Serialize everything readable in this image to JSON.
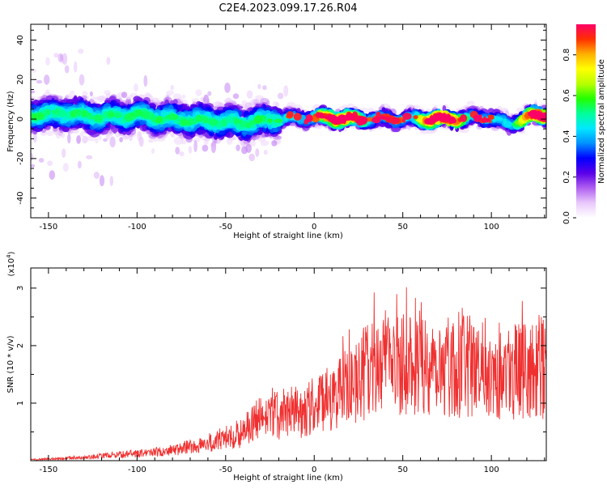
{
  "title": "C2E4.2023.099.17.26.R04",
  "chart_data": [
    {
      "type": "heatmap",
      "xlabel": "Height of straight line (km)",
      "ylabel": "Frequency (Hz)",
      "xlim": [
        -160,
        131
      ],
      "ylim": [
        -50,
        48
      ],
      "xticks": [
        -150,
        -100,
        -50,
        0,
        50,
        100
      ],
      "yticks": [
        -40,
        -20,
        0,
        20,
        40
      ],
      "colorbar": {
        "label": "Normalized spectral amplitude",
        "range": [
          0,
          0.95
        ],
        "ticks": [
          0.0,
          0.2,
          0.4,
          0.6,
          0.8
        ],
        "colormap": [
          "#ffffff",
          "#e9c9fb",
          "#b060f0",
          "#5a00e8",
          "#0000ff",
          "#0090ff",
          "#00e8ff",
          "#00ff9a",
          "#22ff00",
          "#b8ff00",
          "#ffff00",
          "#ffb000",
          "#ff3000",
          "#ff0066"
        ]
      },
      "ridge": {
        "description_points_x": [
          -160,
          -140,
          -120,
          -100,
          -80,
          -60,
          -40,
          -20,
          0,
          20,
          40,
          60,
          80,
          100,
          110,
          120,
          131
        ],
        "description_points_freq": [
          2,
          3,
          1,
          2,
          0,
          -1,
          -2,
          0,
          1,
          0,
          0,
          0,
          0,
          1,
          -3,
          1,
          2
        ],
        "peak_amplitude": 0.95
      }
    },
    {
      "type": "line",
      "xlabel": "Height of straight line (km)",
      "ylabel": "SNR (10 * v/v)",
      "multiplier": "(x10",
      "multiplier_exp": "4",
      "multiplier_close": ")",
      "xlim": [
        -160,
        131
      ],
      "ylim": [
        0,
        3.35
      ],
      "xticks": [
        -150,
        -100,
        -50,
        0,
        50,
        100
      ],
      "yticks": [
        1,
        2,
        3
      ],
      "series_color": "#f03030",
      "trend": {
        "x": [
          -160,
          -130,
          -115,
          -100,
          -80,
          -60,
          -40,
          -30,
          -20,
          -10,
          0,
          10,
          20,
          30,
          40,
          50,
          60,
          80,
          100,
          120,
          131
        ],
        "y": [
          0.02,
          0.05,
          0.1,
          0.12,
          0.18,
          0.3,
          0.5,
          0.75,
          0.8,
          0.85,
          0.95,
          1.1,
          1.3,
          1.55,
          1.7,
          1.75,
          1.7,
          1.65,
          1.6,
          1.55,
          1.6
        ]
      }
    }
  ]
}
